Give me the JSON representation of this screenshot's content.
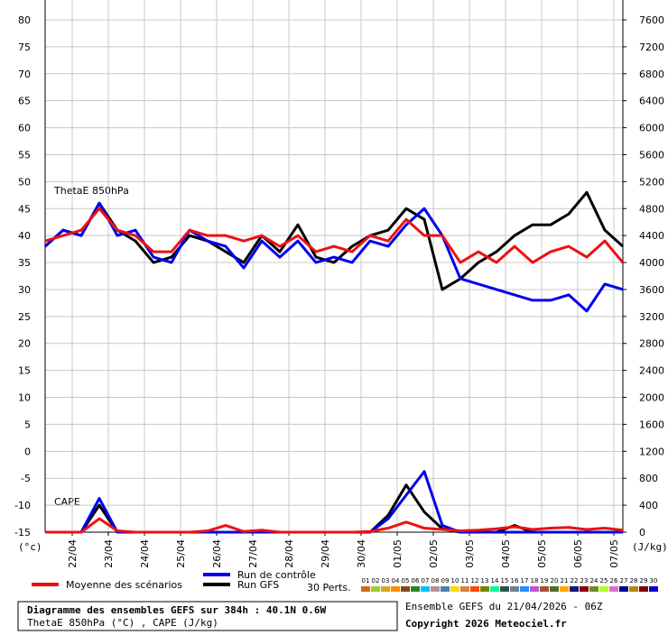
{
  "chart_data": {
    "type": "line",
    "x_unit_label": "(°c)",
    "y2_unit_label": "(J/kg)",
    "annotations": [
      "ThetaE 850hPa",
      "CAPE"
    ],
    "x": [
      0,
      12,
      24,
      36,
      48,
      60,
      72,
      84,
      96,
      108,
      120,
      132,
      144,
      156,
      168,
      180,
      192,
      204,
      216,
      228,
      240,
      252,
      264,
      276,
      288,
      300,
      312,
      324,
      336,
      348,
      360,
      372,
      384
    ],
    "xlim": [
      0,
      384
    ],
    "xticks": [
      {
        "value": 18,
        "label": "22/04"
      },
      {
        "value": 42,
        "label": "23/04"
      },
      {
        "value": 66,
        "label": "24/04"
      },
      {
        "value": 90,
        "label": "25/04"
      },
      {
        "value": 114,
        "label": "26/04"
      },
      {
        "value": 138,
        "label": "27/04"
      },
      {
        "value": 162,
        "label": "28/04"
      },
      {
        "value": 186,
        "label": "29/04"
      },
      {
        "value": 210,
        "label": "30/04"
      },
      {
        "value": 234,
        "label": "01/05"
      },
      {
        "value": 258,
        "label": "02/05"
      },
      {
        "value": 282,
        "label": "03/05"
      },
      {
        "value": 306,
        "label": "04/05"
      },
      {
        "value": 330,
        "label": "05/05"
      },
      {
        "value": 354,
        "label": "06/05"
      },
      {
        "value": 378,
        "label": "07/05"
      }
    ],
    "ylim": [
      -15,
      80
    ],
    "yticks": [
      -15,
      -10,
      -5,
      0,
      5,
      10,
      15,
      20,
      25,
      30,
      35,
      40,
      45,
      50,
      55,
      60,
      65,
      70,
      75,
      80
    ],
    "y2lim": [
      0,
      7600
    ],
    "y2ticks": [
      0,
      400,
      800,
      1200,
      1600,
      2000,
      2400,
      2800,
      3200,
      3600,
      4000,
      4400,
      4800,
      5200,
      5600,
      6000,
      6400,
      6800,
      7200,
      7600
    ],
    "grid": true,
    "series": [
      {
        "name": "Moyenne des scénarios",
        "color": "#ee1111",
        "values": [
          39,
          40,
          41,
          45,
          41,
          40,
          37,
          37,
          41,
          40,
          40,
          39,
          40,
          38,
          40,
          37,
          38,
          37,
          40,
          39,
          43,
          40,
          40,
          35,
          37,
          35,
          38,
          35,
          37,
          38,
          36,
          39,
          35
        ],
        "y2_values": [
          0,
          0,
          0,
          200,
          20,
          0,
          0,
          0,
          0,
          20,
          100,
          10,
          30,
          0,
          0,
          0,
          0,
          0,
          10,
          60,
          150,
          60,
          40,
          20,
          30,
          50,
          80,
          40,
          60,
          70,
          40,
          60,
          30
        ]
      },
      {
        "name": "Run de contrôle",
        "color": "#0000ee",
        "values": [
          38,
          41,
          40,
          46,
          40,
          41,
          36,
          35,
          41,
          39,
          38,
          34,
          39,
          36,
          39,
          35,
          36,
          35,
          39,
          38,
          42,
          45,
          40,
          32,
          31,
          30,
          29,
          28,
          28,
          29,
          26,
          31,
          30
        ],
        "y2_values": [
          0,
          0,
          0,
          500,
          0,
          0,
          0,
          0,
          0,
          0,
          0,
          0,
          0,
          0,
          0,
          0,
          0,
          0,
          0,
          200,
          550,
          900,
          100,
          0,
          0,
          0,
          0,
          0,
          0,
          0,
          0,
          0,
          0
        ]
      },
      {
        "name": "Run GFS",
        "color": "#000000",
        "values": [
          38,
          41,
          40,
          46,
          41,
          39,
          35,
          36,
          40,
          39,
          37,
          35,
          40,
          37,
          42,
          36,
          35,
          38,
          40,
          41,
          45,
          43,
          30,
          32,
          35,
          37,
          40,
          42,
          42,
          44,
          48,
          41,
          38
        ],
        "y2_values": [
          0,
          0,
          0,
          400,
          0,
          0,
          0,
          0,
          0,
          0,
          0,
          0,
          0,
          0,
          0,
          0,
          0,
          0,
          0,
          250,
          700,
          300,
          50,
          0,
          0,
          0,
          100,
          0,
          0,
          0,
          0,
          0,
          0
        ]
      }
    ],
    "perturbations_label": "30 Perts.",
    "perturbations": [
      {
        "name": "01",
        "color": "#d2691e"
      },
      {
        "name": "02",
        "color": "#9acd32"
      },
      {
        "name": "03",
        "color": "#daa520"
      },
      {
        "name": "04",
        "color": "#ff8c00"
      },
      {
        "name": "05",
        "color": "#8b4513"
      },
      {
        "name": "06",
        "color": "#228b22"
      },
      {
        "name": "07",
        "color": "#00bfff"
      },
      {
        "name": "08",
        "color": "#bc8f8f"
      },
      {
        "name": "09",
        "color": "#4682b4"
      },
      {
        "name": "10",
        "color": "#ffd700"
      },
      {
        "name": "11",
        "color": "#cd853f"
      },
      {
        "name": "12",
        "color": "#ff4500"
      },
      {
        "name": "13",
        "color": "#808000"
      },
      {
        "name": "14",
        "color": "#00fa9a"
      },
      {
        "name": "15",
        "color": "#2f4f4f"
      },
      {
        "name": "16",
        "color": "#708090"
      },
      {
        "name": "17",
        "color": "#1e90ff"
      },
      {
        "name": "18",
        "color": "#ba55d3"
      },
      {
        "name": "19",
        "color": "#a0522d"
      },
      {
        "name": "20",
        "color": "#556b2f"
      },
      {
        "name": "21",
        "color": "#ffa500"
      },
      {
        "name": "22",
        "color": "#191970"
      },
      {
        "name": "23",
        "color": "#8b0000"
      },
      {
        "name": "24",
        "color": "#6b8e23"
      },
      {
        "name": "25",
        "color": "#adff2f"
      },
      {
        "name": "26",
        "color": "#da70d6"
      },
      {
        "name": "27",
        "color": "#00008b"
      },
      {
        "name": "28",
        "color": "#b8860b"
      },
      {
        "name": "29",
        "color": "#800000"
      },
      {
        "name": "30",
        "color": "#0000cd"
      }
    ],
    "footer": {
      "title": "Diagramme des ensembles GEFS sur 384h : 40.1N 0.6W",
      "subtitle": "ThetaE 850hPa (°C) , CAPE (J/kg)",
      "run": "Ensemble GEFS du 21/04/2026 - 06Z",
      "copyright": "Copyright 2026 Meteociel.fr"
    }
  }
}
